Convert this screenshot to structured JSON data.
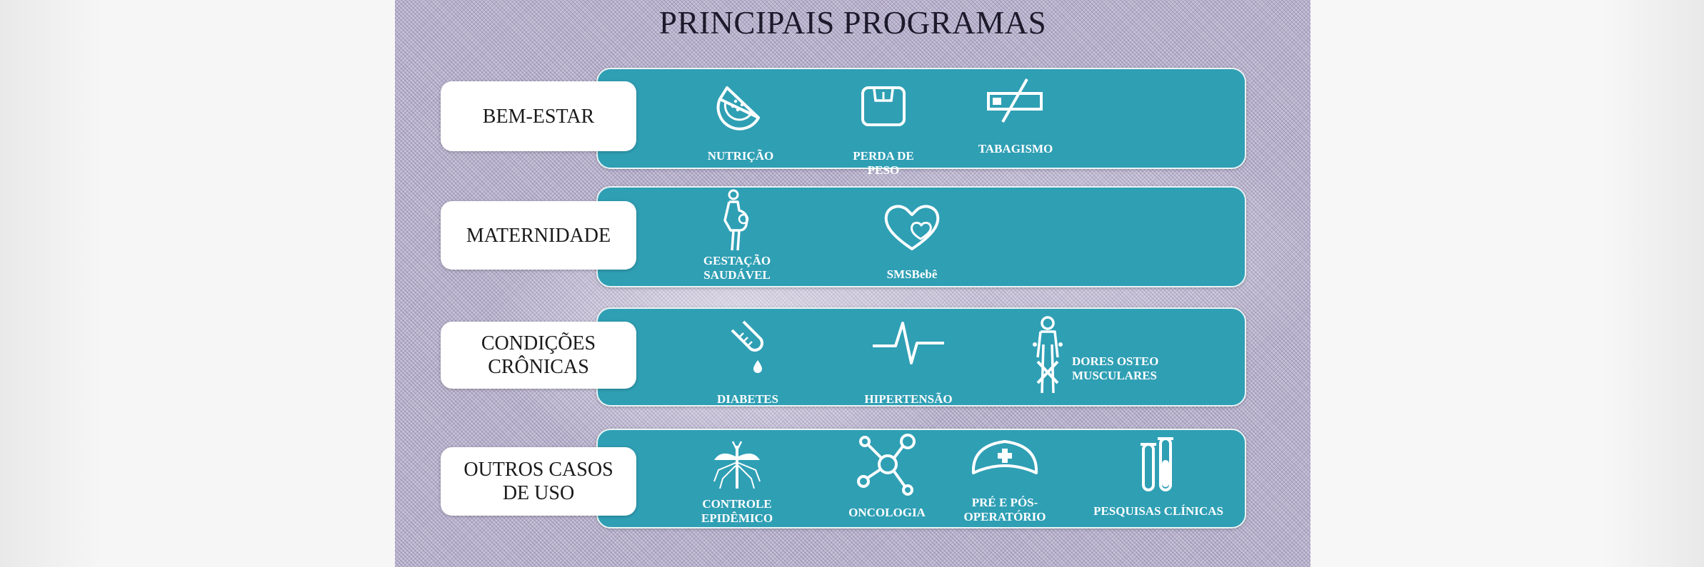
{
  "title": "PRINCIPAIS PROGRAMAS",
  "categories": [
    {
      "label": "BEM-ESTAR",
      "items": [
        {
          "label": "NUTRIÇÃO",
          "icon": "watermelon-icon"
        },
        {
          "label": "PERDA DE\nPESO",
          "icon": "scale-icon"
        },
        {
          "label": "TABAGISMO",
          "icon": "no-smoking-icon"
        }
      ]
    },
    {
      "label": "MATERNIDADE",
      "items": [
        {
          "label": "GESTAÇÃO\nSAUDÁVEL",
          "icon": "pregnant-woman-icon"
        },
        {
          "label": "SMSBebê",
          "icon": "hearts-icon"
        }
      ]
    },
    {
      "label": "CONDIÇÕES\nCRÔNICAS",
      "items": [
        {
          "label": "DIABETES",
          "icon": "glucose-test-icon"
        },
        {
          "label": "HIPERTENSÃO",
          "icon": "heartbeat-icon"
        },
        {
          "label": "DORES OSTEO\nMUSCULARES",
          "icon": "joint-pain-icon"
        }
      ]
    },
    {
      "label": "OUTROS CASOS\nDE USO",
      "items": [
        {
          "label": "CONTROLE\nEPIDÊMICO",
          "icon": "mosquito-icon"
        },
        {
          "label": "ONCOLOGIA",
          "icon": "molecule-icon"
        },
        {
          "label": "PRÉ E PÓS-\nOPERATÓRIO",
          "icon": "nurse-cap-icon"
        },
        {
          "label": "PESQUISAS CLÍNICAS",
          "icon": "test-tubes-icon"
        }
      ]
    }
  ],
  "colors": {
    "band": "#2f9fb4",
    "label_box": "#ffffff",
    "background": "#b9b3cd",
    "title": "#1c1a2b"
  }
}
